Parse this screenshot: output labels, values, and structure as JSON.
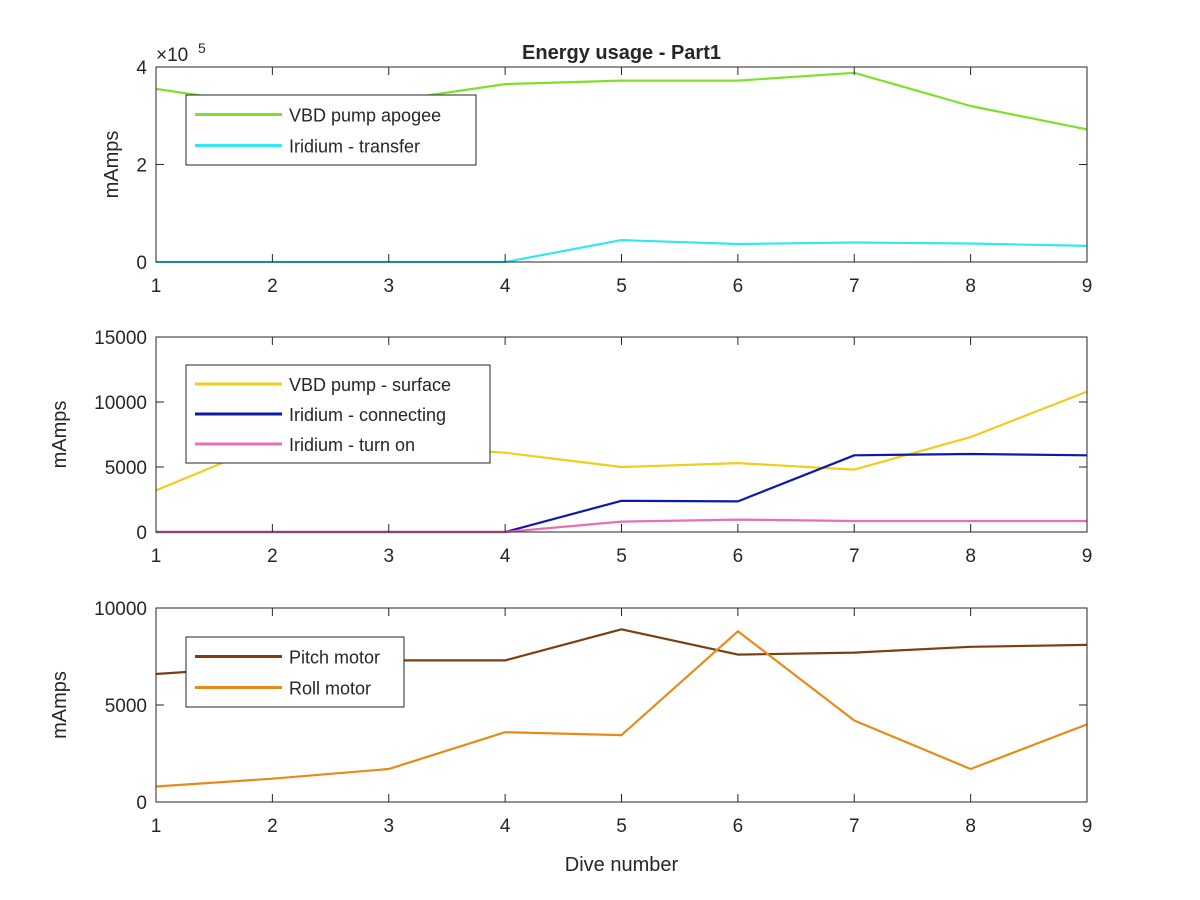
{
  "chart_data": [
    {
      "type": "line",
      "title": "Energy usage - Part1",
      "xlabel": "",
      "ylabel": "mAmps",
      "exponent_label": "×10",
      "exponent_power": "5",
      "x": [
        1,
        2,
        3,
        4,
        5,
        6,
        7,
        8,
        9
      ],
      "xlim": [
        1,
        9
      ],
      "xticks": [
        "1",
        "2",
        "3",
        "4",
        "5",
        "6",
        "7",
        "8",
        "9"
      ],
      "ylim": [
        0,
        4
      ],
      "yticks": [
        "0",
        "2",
        "4"
      ],
      "ytick_values": [
        0,
        2,
        4
      ],
      "y_scale_note": "values in units of 1e5 mAmps",
      "grid": false,
      "legend_position": "top-left",
      "series": [
        {
          "name": "VBD pump apogee",
          "color": "#7fe02c",
          "values": [
            3.55,
            3.2,
            3.3,
            3.65,
            3.72,
            3.72,
            3.88,
            3.2,
            2.72
          ]
        },
        {
          "name": "Iridium - transfer",
          "color": "#33e6f2",
          "values": [
            0,
            0,
            0,
            0,
            0.45,
            0.37,
            0.4,
            0.38,
            0.33
          ]
        }
      ]
    },
    {
      "type": "line",
      "title": "",
      "xlabel": "",
      "ylabel": "mAmps",
      "x": [
        1,
        2,
        3,
        4,
        5,
        6,
        7,
        8,
        9
      ],
      "xlim": [
        1,
        9
      ],
      "xticks": [
        "1",
        "2",
        "3",
        "4",
        "5",
        "6",
        "7",
        "8",
        "9"
      ],
      "ylim": [
        0,
        15000
      ],
      "yticks": [
        "0",
        "5000",
        "10000",
        "15000"
      ],
      "ytick_values": [
        0,
        5000,
        10000,
        15000
      ],
      "grid": false,
      "legend_position": "top-left",
      "series": [
        {
          "name": "VBD pump - surface",
          "color": "#f0cc1c",
          "values": [
            3200,
            6900,
            6700,
            6100,
            5000,
            5300,
            4800,
            7300,
            10800
          ]
        },
        {
          "name": "Iridium - connecting",
          "color": "#0e1aa6",
          "values": [
            0,
            0,
            0,
            0,
            2400,
            2350,
            5900,
            6000,
            5900
          ]
        },
        {
          "name": "Iridium - turn on",
          "color": "#e66fb5",
          "values": [
            0,
            0,
            0,
            0,
            800,
            950,
            850,
            850,
            850
          ]
        }
      ]
    },
    {
      "type": "line",
      "title": "",
      "xlabel": "Dive number",
      "ylabel": "mAmps",
      "x": [
        1,
        2,
        3,
        4,
        5,
        6,
        7,
        8,
        9
      ],
      "xlim": [
        1,
        9
      ],
      "xticks": [
        "1",
        "2",
        "3",
        "4",
        "5",
        "6",
        "7",
        "8",
        "9"
      ],
      "ylim": [
        0,
        10000
      ],
      "yticks": [
        "0",
        "5000",
        "10000"
      ],
      "ytick_values": [
        0,
        5000,
        10000
      ],
      "grid": false,
      "legend_position": "top-left",
      "series": [
        {
          "name": "Pitch motor",
          "color": "#7a3f12",
          "values": [
            6600,
            7000,
            7300,
            7300,
            8900,
            7600,
            7700,
            8000,
            8100
          ]
        },
        {
          "name": "Roll motor",
          "color": "#e88a1a",
          "values": [
            800,
            1200,
            1700,
            3600,
            3450,
            8800,
            4200,
            1700,
            4000
          ]
        }
      ]
    }
  ]
}
